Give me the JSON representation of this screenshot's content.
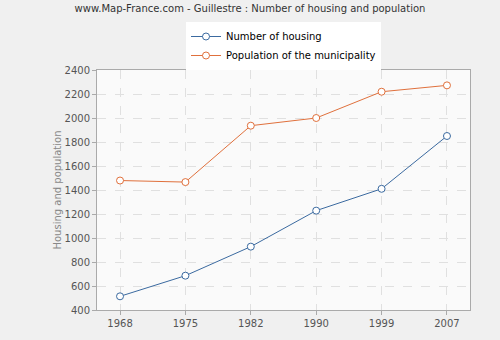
{
  "chart_data": {
    "type": "line",
    "title": "www.Map-France.com - Guillestre : Number of housing and population",
    "y_label": "Housing and population",
    "categories": [
      "1968",
      "1975",
      "1982",
      "1990",
      "1999",
      "2007"
    ],
    "series": [
      {
        "name": "Number of housing",
        "color": "#3b6aa0",
        "values": [
          514,
          686,
          928,
          1228,
          1410,
          1850
        ]
      },
      {
        "name": "Population of the municipality",
        "color": "#e0703c",
        "values": [
          1479,
          1466,
          1936,
          2000,
          2219,
          2272
        ]
      }
    ],
    "ylim": [
      400,
      2400
    ],
    "yticks": [
      400,
      600,
      800,
      1000,
      1200,
      1400,
      1600,
      1800,
      2000,
      2200,
      2400
    ],
    "grid": true,
    "legend": "top",
    "marker": "circle"
  }
}
